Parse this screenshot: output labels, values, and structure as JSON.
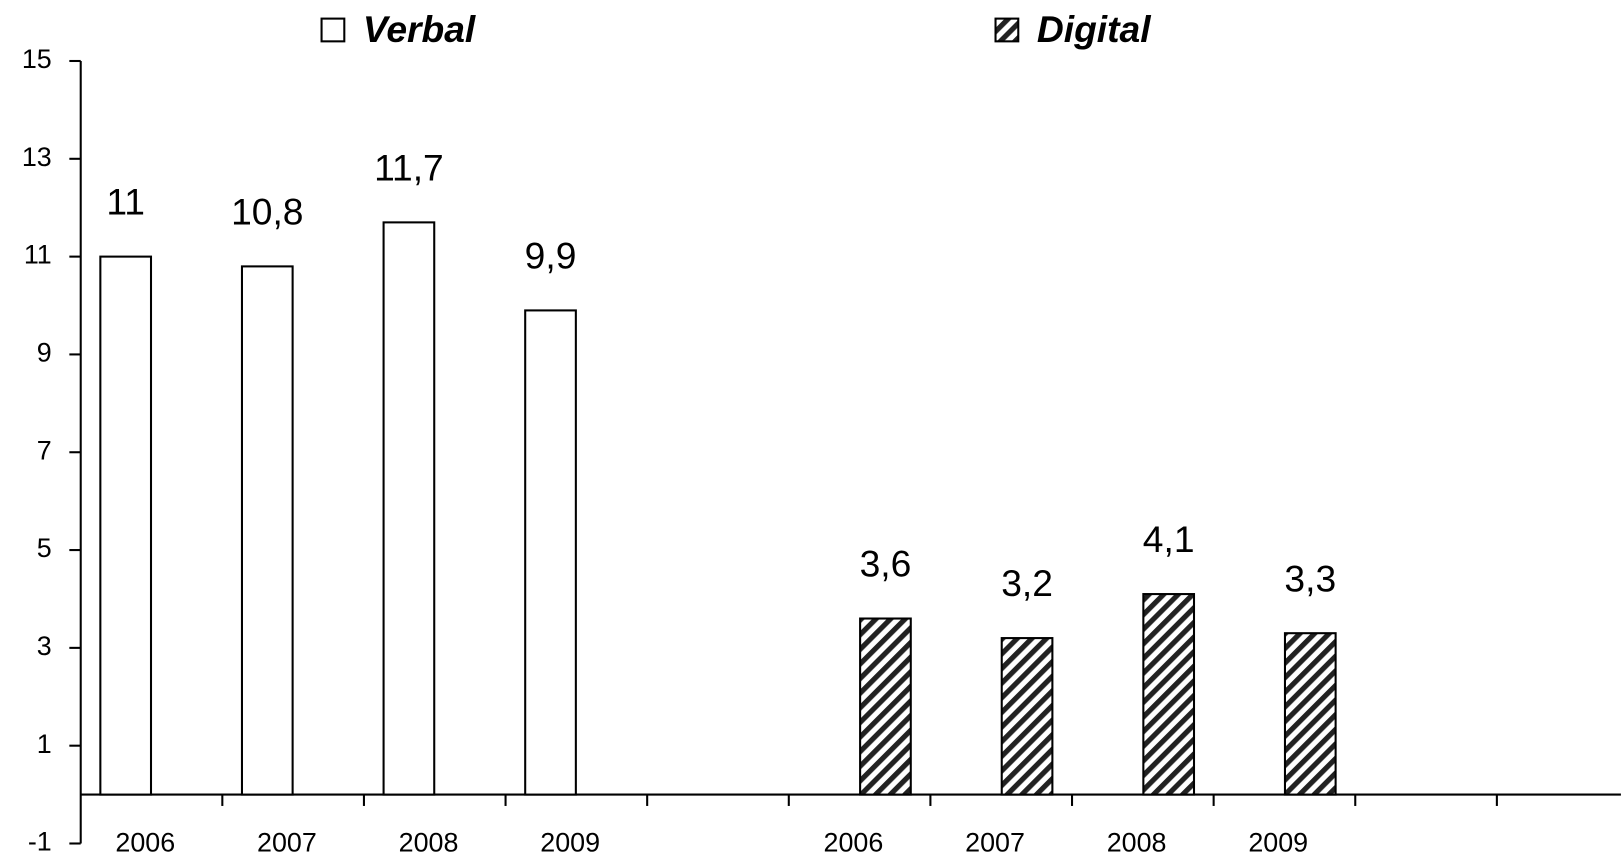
{
  "chart_data": {
    "type": "bar",
    "categories": [
      "2006",
      "2007",
      "2008",
      "2009",
      null,
      "2006",
      "2007",
      "2008",
      "2009",
      null,
      null
    ],
    "series": [
      {
        "name": "Verbal",
        "color": "#ffffff",
        "values": [
          11,
          10.8,
          11.7,
          9.9,
          null,
          null,
          null,
          null,
          null,
          null,
          null
        ],
        "value_labels": [
          "11",
          "10,8",
          "11,7",
          "9,9",
          null,
          null,
          null,
          null,
          null,
          null,
          null
        ]
      },
      {
        "name": "Digital",
        "color": "#ffffff",
        "pattern": "diagonal-hatch",
        "values": [
          null,
          null,
          null,
          null,
          null,
          3.6,
          3.2,
          4.1,
          3.3,
          null,
          null
        ],
        "value_labels": [
          null,
          null,
          null,
          null,
          null,
          "3,6",
          "3,2",
          "4,1",
          "3,3",
          null,
          null
        ]
      }
    ],
    "ylim": [
      -1,
      15
    ],
    "yticks": [
      -1,
      1,
      3,
      5,
      7,
      9,
      11,
      13,
      15
    ],
    "grid": false,
    "legend": "top"
  }
}
